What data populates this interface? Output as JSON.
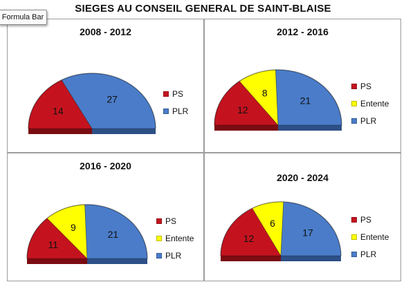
{
  "title": "SIEGES AU CONSEIL GENERAL DE SAINT-BLAISE",
  "tooltip": "Formula Bar",
  "colors": {
    "PS": "#c4131f",
    "Entente": "#ffff00",
    "PLR": "#4a7cc9",
    "side_PS": "#7a0c12",
    "side_Entente": "#a9a900",
    "side_PLR": "#2c4f86"
  },
  "chart_data": [
    {
      "type": "pie",
      "title": "2008 - 2012",
      "categories": [
        "PS",
        "PLR"
      ],
      "values": [
        14,
        27
      ]
    },
    {
      "type": "pie",
      "title": "2012 - 2016",
      "categories": [
        "PS",
        "Entente",
        "PLR"
      ],
      "values": [
        12,
        8,
        21
      ]
    },
    {
      "type": "pie",
      "title": "2016 - 2020",
      "categories": [
        "PS",
        "Entente",
        "PLR"
      ],
      "values": [
        11,
        9,
        21
      ]
    },
    {
      "type": "pie",
      "title": "2020 - 2024",
      "categories": [
        "PS",
        "Entente",
        "PLR"
      ],
      "values": [
        12,
        6,
        17
      ]
    }
  ]
}
